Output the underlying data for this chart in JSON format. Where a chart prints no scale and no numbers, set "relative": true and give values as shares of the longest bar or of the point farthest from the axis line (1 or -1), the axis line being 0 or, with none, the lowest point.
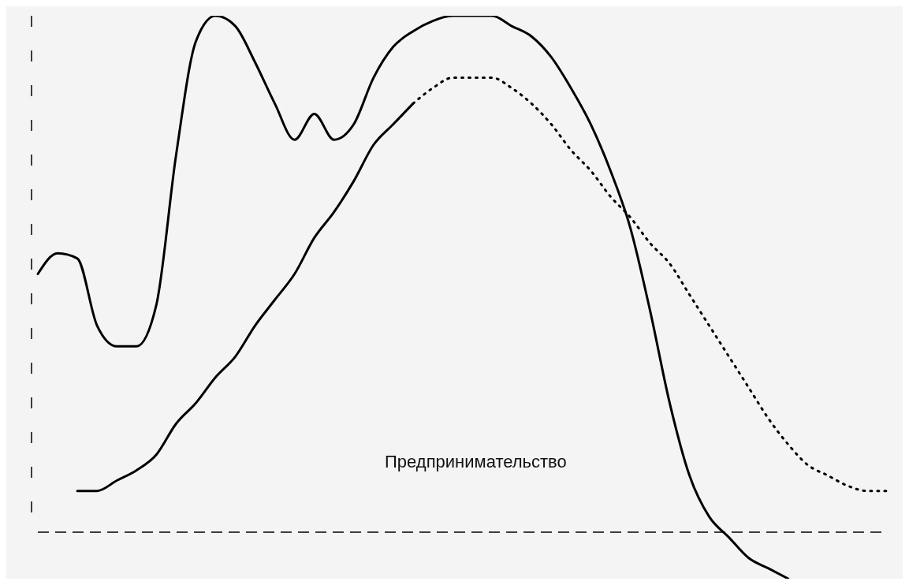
{
  "chart_data": {
    "type": "line",
    "relative": true,
    "marker": "none",
    "grid": false,
    "legend": false,
    "ref_lines": [
      {
        "axis": "y",
        "value": 0,
        "color": "#000000",
        "line_style": "dashed"
      }
    ],
    "categories": [
      null,
      null,
      null,
      null,
      null,
      null,
      null,
      null,
      null,
      null,
      null,
      null,
      null,
      null,
      null,
      null,
      null,
      null,
      null,
      null,
      null,
      null,
      null,
      null,
      null,
      null,
      null,
      null,
      null,
      null,
      null,
      null,
      null,
      null,
      null,
      null,
      null,
      null,
      null,
      null,
      null,
      null,
      null,
      null
    ],
    "series": [
      {
        "color": "#000000",
        "line_style": "solid",
        "values": [
          0.5,
          0.54,
          0.53,
          0.4,
          0.36,
          0.36,
          0.44,
          0.73,
          0.95,
          1.0,
          0.98,
          0.91,
          0.83,
          0.76,
          0.81,
          0.76,
          0.79,
          0.88,
          0.94,
          0.97,
          0.99,
          1.0,
          1.0,
          1.0,
          0.98,
          0.96,
          0.92,
          0.86,
          0.79,
          0.7,
          0.59,
          0.43,
          0.25,
          0.11,
          0.03,
          -0.01,
          -0.05,
          -0.07,
          -0.09,
          null,
          null,
          null,
          null,
          null
        ]
      },
      {
        "color": "#000000",
        "line_style": "solid",
        "values": [
          null,
          null,
          0.08,
          0.08,
          0.1,
          0.12,
          0.15,
          0.21,
          0.25,
          0.3,
          0.34,
          0.4,
          0.45,
          0.5,
          0.57,
          0.62,
          0.68,
          0.75,
          0.79,
          0.83,
          null,
          null,
          null,
          null,
          null,
          null,
          null,
          null,
          null,
          null,
          null,
          null,
          null,
          null,
          null,
          null,
          null,
          null,
          null,
          null,
          null,
          null,
          null,
          null
        ]
      },
      {
        "color": "#000000",
        "line_style": "dotted",
        "values": [
          null,
          null,
          null,
          null,
          null,
          null,
          null,
          null,
          null,
          null,
          null,
          null,
          null,
          null,
          null,
          null,
          null,
          null,
          null,
          0.83,
          0.86,
          0.88,
          0.88,
          0.88,
          0.86,
          0.83,
          0.79,
          0.74,
          0.7,
          0.65,
          0.61,
          0.56,
          0.52,
          0.46,
          0.4,
          0.34,
          0.28,
          0.22,
          0.17,
          0.13,
          0.11,
          0.09,
          0.08,
          0.08
        ]
      }
    ],
    "annotations": [
      "Предпринимательство"
    ]
  }
}
